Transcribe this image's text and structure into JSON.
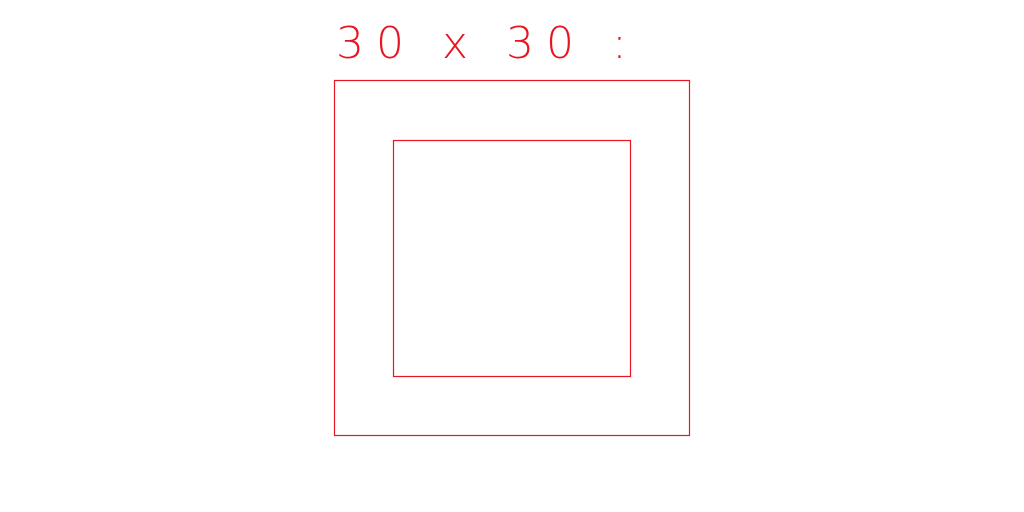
{
  "drawing": {
    "label": "30 x 30 :",
    "stroke_color": "#e8141f",
    "background_color": "#ffffff"
  }
}
